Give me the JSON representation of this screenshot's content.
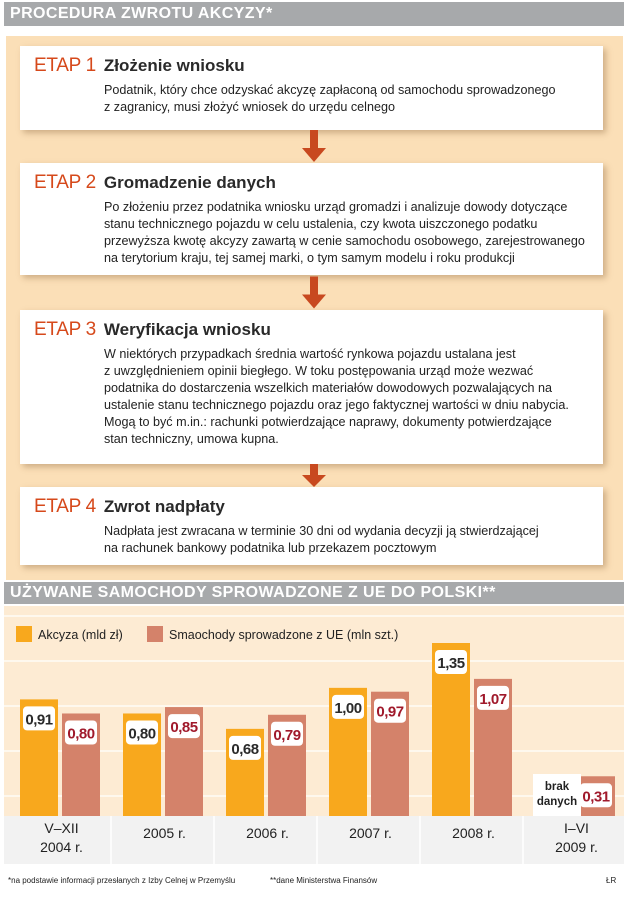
{
  "procedure": {
    "title": "PROCEDURA ZWROTU AKCYZY*",
    "steps": [
      {
        "label": "ETAP 1",
        "name": "Złożenie wniosku",
        "text": "Podatnik, który chce odzyskać akcyzę zapłaconą od samochodu sprowadzonego\nz zagranicy, musi złożyć wniosek do urzędu celnego"
      },
      {
        "label": "ETAP 2",
        "name": "Gromadzenie danych",
        "text": "Po złożeniu przez podatnika wniosku urząd gromadzi i analizuje dowody dotyczące\nstanu technicznego pojazdu w celu ustalenia, czy kwota uiszczonego podatku\nprzewyższa kwotę akcyzy zawartą w cenie samochodu osobowego, zarejestrowanego\nna terytorium kraju, tej samej marki, o tym samym modelu i roku produkcji"
      },
      {
        "label": "ETAP 3",
        "name": "Weryfikacja wniosku",
        "text": "W niektórych przypadkach średnia wartość rynkowa pojazdu ustalana jest\nz uwzględnieniem opinii biegłego. W toku postępowania urząd może wezwać\npodatnika do dostarczenia wszelkich materiałów dowodowych pozwalających na\nustalenie stanu technicznego pojazdu oraz jego faktycznej wartości w dniu nabycia.\nMogą to być m.in.: rachunki potwierdzające naprawy, dokumenty potwierdzające\nstan techniczny, umowa kupna."
      },
      {
        "label": "ETAP 4",
        "name": "Zwrot nadpłaty",
        "text": "Nadpłata jest zwracana w terminie 30 dni od wydania decyzji ją stwierdzającej\nna rachunek bankowy podatnika lub przekazem pocztowym"
      }
    ]
  },
  "colors": {
    "accent": "#d6491b",
    "akcyza": "#f8a81d",
    "samochody": "#d4826a",
    "value_dark": "#2a2a2a",
    "value_red": "#a0192b",
    "header_bg": "#a7a9ab",
    "panel_bg": "#fbdfb7"
  },
  "chart_data": {
    "type": "bar",
    "title": "UŻYWANE SAMOCHODY SPROWADZONE Z UE DO POLSKI**",
    "categories": [
      [
        "V–XII",
        "2004 r."
      ],
      [
        "2005 r."
      ],
      [
        "2006 r."
      ],
      [
        "2007 r."
      ],
      [
        "2008 r."
      ],
      [
        "I–VI",
        "2009 r."
      ]
    ],
    "series": [
      {
        "name": "Akcyza (mld zł)",
        "values": [
          0.91,
          0.8,
          0.68,
          1.0,
          1.35,
          null
        ],
        "labels": [
          "0,91",
          "0,80",
          "0,68",
          "1,00",
          "1,35",
          ""
        ]
      },
      {
        "name": "Smaochody sprowadzone z UE (mln szt.)",
        "values": [
          0.8,
          0.85,
          0.79,
          0.97,
          1.07,
          0.31
        ],
        "labels": [
          "0,80",
          "0,85",
          "0,79",
          "0,97",
          "1,07",
          "0,31"
        ]
      }
    ],
    "annotation": [
      "brak",
      "danych"
    ],
    "ylim": [
      0,
      1.6
    ],
    "grid": true,
    "legend": "top-left"
  },
  "footnotes": {
    "note1": "*na podstawie informacji przesłanych z Izby Celnej w Przemyślu",
    "note2": "**dane Ministerstwa Finansów",
    "credit": "ŁR"
  }
}
